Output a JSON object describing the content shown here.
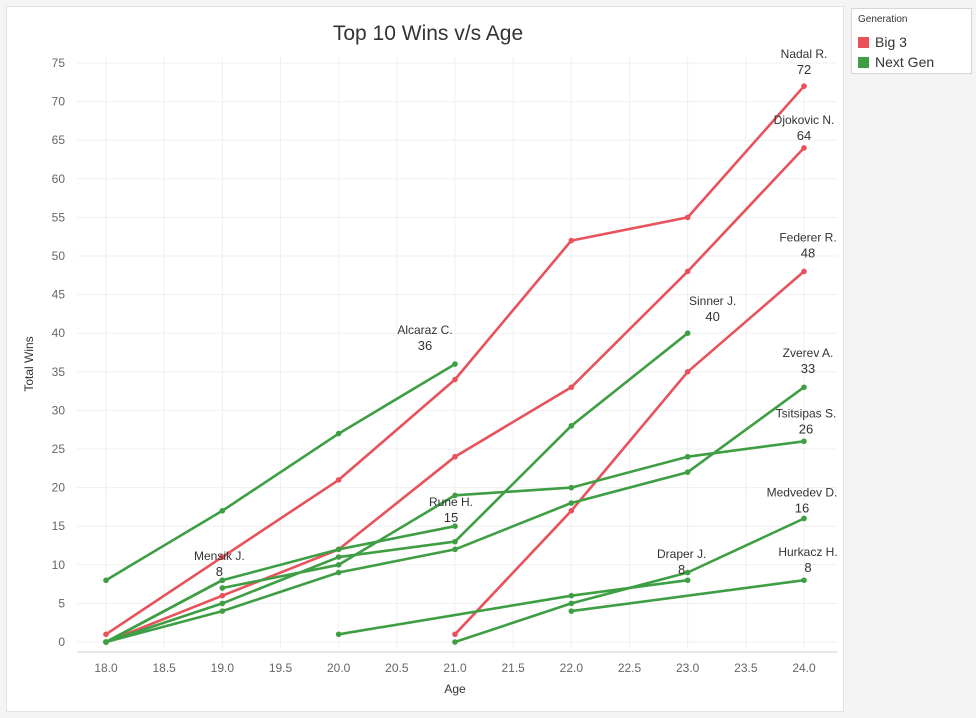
{
  "chart_data": {
    "type": "line",
    "title": "Top 10 Wins v/s Age",
    "xlabel": "Age",
    "ylabel": "Total Wins",
    "xlim": [
      18.0,
      24.0
    ],
    "ylim": [
      0,
      75
    ],
    "x_ticks": [
      "18.0",
      "18.5",
      "19.0",
      "19.5",
      "20.0",
      "20.5",
      "21.0",
      "21.5",
      "22.0",
      "22.5",
      "23.0",
      "23.5",
      "24.0"
    ],
    "y_ticks": [
      "0",
      "5",
      "10",
      "15",
      "20",
      "25",
      "30",
      "35",
      "40",
      "45",
      "50",
      "55",
      "60",
      "65",
      "70",
      "75"
    ],
    "grid": true,
    "legend": {
      "title": "Generation",
      "placement": "top-right-outside",
      "items": [
        {
          "label": "Big 3",
          "color": "#e8525b"
        },
        {
          "label": "Next Gen",
          "color": "#3e9e43"
        }
      ]
    },
    "series": [
      {
        "name": "Nadal R.",
        "generation": "Big 3",
        "end_label": "72",
        "points": [
          [
            18,
            1
          ],
          [
            19,
            11
          ],
          [
            20,
            21
          ],
          [
            21,
            34
          ],
          [
            22,
            52
          ],
          [
            23,
            55
          ],
          [
            24,
            72
          ]
        ]
      },
      {
        "name": "Djokovic N.",
        "generation": "Big 3",
        "end_label": "64",
        "points": [
          [
            18,
            0
          ],
          [
            19,
            6
          ],
          [
            20,
            12
          ],
          [
            21,
            24
          ],
          [
            22,
            33
          ],
          [
            23,
            48
          ],
          [
            24,
            64
          ]
        ]
      },
      {
        "name": "Federer R.",
        "generation": "Big 3",
        "end_label": "48",
        "points": [
          [
            21,
            1
          ],
          [
            22,
            17
          ],
          [
            23,
            35
          ],
          [
            24,
            48
          ]
        ]
      },
      {
        "name": "Alcaraz C.",
        "generation": "Next Gen",
        "end_label": "36",
        "points": [
          [
            18,
            8
          ],
          [
            19,
            17
          ],
          [
            20,
            27
          ],
          [
            21,
            36
          ]
        ]
      },
      {
        "name": "Sinner J.",
        "generation": "Next Gen",
        "end_label": "40",
        "points": [
          [
            18,
            0
          ],
          [
            19,
            5
          ],
          [
            20,
            11
          ],
          [
            21,
            13
          ],
          [
            22,
            28
          ],
          [
            23,
            40
          ]
        ]
      },
      {
        "name": "Zverev A.",
        "generation": "Next Gen",
        "end_label": "33",
        "points": [
          [
            18,
            0
          ],
          [
            19,
            4
          ],
          [
            20,
            9
          ],
          [
            21,
            12
          ],
          [
            22,
            18
          ],
          [
            23,
            22
          ],
          [
            24,
            33
          ]
        ]
      },
      {
        "name": "Tsitsipas S.",
        "generation": "Next Gen",
        "end_label": "26",
        "points": [
          [
            19,
            7
          ],
          [
            20,
            10
          ],
          [
            21,
            19
          ],
          [
            22,
            20
          ],
          [
            23,
            24
          ],
          [
            24,
            26
          ]
        ]
      },
      {
        "name": "Rune H.",
        "generation": "Next Gen",
        "end_label": "15",
        "points": [
          [
            18,
            0
          ],
          [
            19,
            8
          ],
          [
            20,
            12
          ],
          [
            21,
            15
          ]
        ]
      },
      {
        "name": "Mensik J.",
        "generation": "Next Gen",
        "end_label": "8",
        "points": [
          [
            18,
            0
          ],
          [
            19,
            8
          ]
        ]
      },
      {
        "name": "Medvedev D.",
        "generation": "Next Gen",
        "end_label": "16",
        "points": [
          [
            21,
            0
          ],
          [
            22,
            5
          ],
          [
            23,
            9
          ],
          [
            24,
            16
          ]
        ]
      },
      {
        "name": "Draper J.",
        "generation": "Next Gen",
        "end_label": "8",
        "points": [
          [
            20,
            1
          ],
          [
            22,
            6
          ],
          [
            23,
            8
          ]
        ]
      },
      {
        "name": "Hurkacz H.",
        "generation": "Next Gen",
        "end_label": "8",
        "points": [
          [
            22,
            4
          ],
          [
            24,
            8
          ]
        ]
      }
    ]
  }
}
